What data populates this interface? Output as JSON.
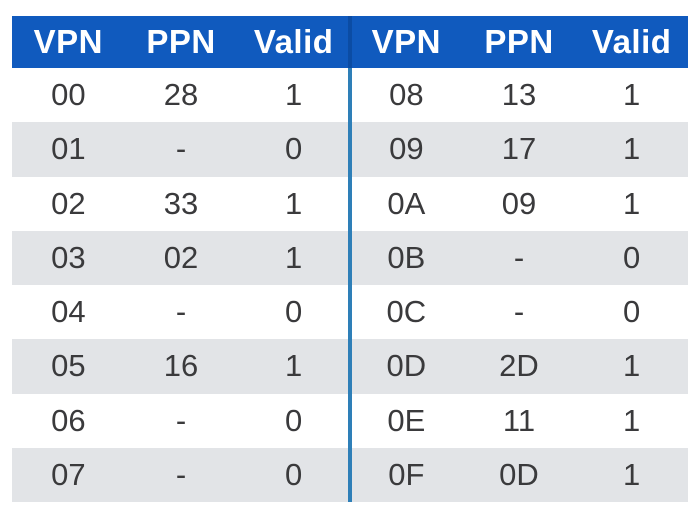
{
  "chart_data": {
    "type": "table",
    "columns": [
      "VPN",
      "PPN",
      "Valid"
    ],
    "left": [
      [
        "00",
        "28",
        "1"
      ],
      [
        "01",
        "-",
        "0"
      ],
      [
        "02",
        "33",
        "1"
      ],
      [
        "03",
        "02",
        "1"
      ],
      [
        "04",
        "-",
        "0"
      ],
      [
        "05",
        "16",
        "1"
      ],
      [
        "06",
        "-",
        "0"
      ],
      [
        "07",
        "-",
        "0"
      ]
    ],
    "right": [
      [
        "08",
        "13",
        "1"
      ],
      [
        "09",
        "17",
        "1"
      ],
      [
        "0A",
        "09",
        "1"
      ],
      [
        "0B",
        "-",
        "0"
      ],
      [
        "0C",
        "-",
        "0"
      ],
      [
        "0D",
        "2D",
        "1"
      ],
      [
        "0E",
        "11",
        "1"
      ],
      [
        "0F",
        "0D",
        "1"
      ]
    ]
  },
  "colors": {
    "header_bg": "#105ABE",
    "header_text": "#FFFFFF",
    "stripe_bg": "#E2E4E7",
    "cell_text": "#3A3A3C",
    "divider_header": "#0B4CA4",
    "divider_body": "#2E7FB8"
  }
}
